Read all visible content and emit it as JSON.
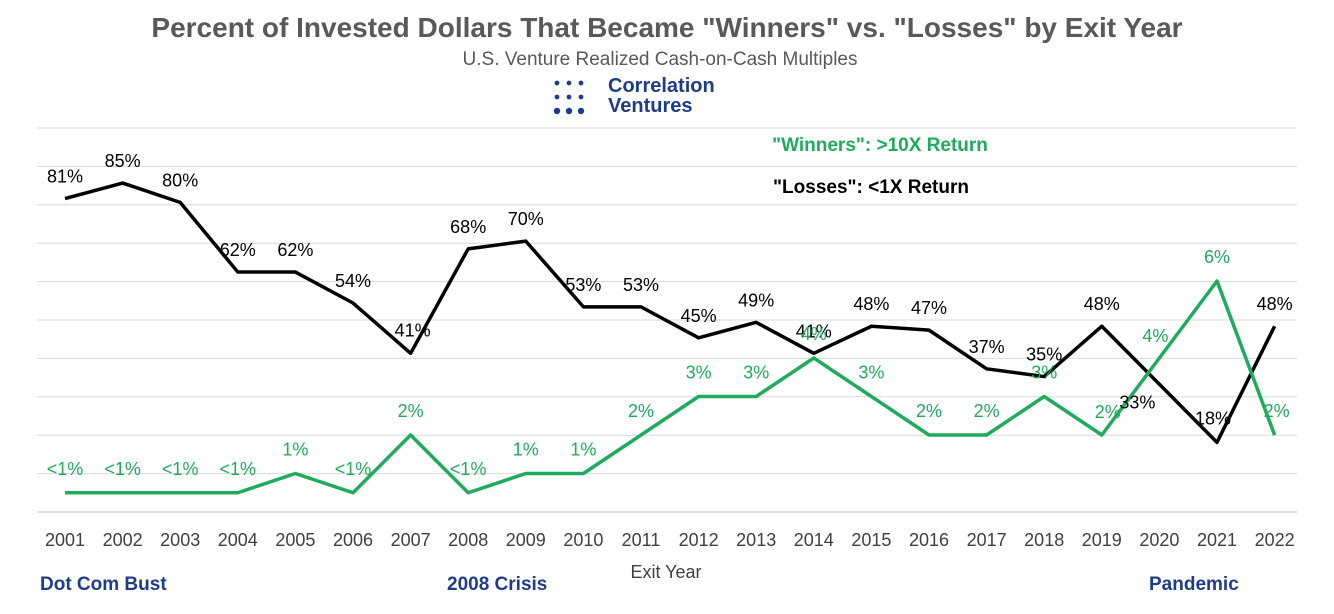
{
  "title": "Percent of Invested Dollars That Became \"Winners\" vs. \"Losses\" by Exit Year",
  "subtitle": "U.S. Venture Realized Cash-on-Cash Multiples",
  "logo": {
    "line1": "Correlation",
    "line2": "Ventures"
  },
  "footer": {
    "left": "Dot Com Bust",
    "middle": "2008 Crisis",
    "right": "Pandemic"
  },
  "colors": {
    "winners": "#1fab5c",
    "losses": "#000000",
    "brand": "#1f3c8c",
    "grid": "#d9d9d9"
  },
  "chart_data": {
    "type": "line",
    "xlabel": "Exit Year",
    "ylabel": "",
    "grid": true,
    "categories": [
      "2001",
      "2002",
      "2003",
      "2004",
      "2005",
      "2006",
      "2007",
      "2008",
      "2009",
      "2010",
      "2011",
      "2012",
      "2013",
      "2014",
      "2015",
      "2016",
      "2017",
      "2018",
      "2019",
      "2020",
      "2021",
      "2022"
    ],
    "series": [
      {
        "name": "\"Losses\": <1X Return",
        "values": [
          81,
          85,
          80,
          62,
          62,
          54,
          41,
          68,
          70,
          53,
          53,
          45,
          49,
          41,
          48,
          47,
          37,
          35,
          48,
          33,
          18,
          48
        ],
        "labels": [
          "81%",
          "85%",
          "80%",
          "62%",
          "62%",
          "54%",
          "41%",
          "68%",
          "70%",
          "53%",
          "53%",
          "45%",
          "49%",
          "41%",
          "48%",
          "47%",
          "37%",
          "35%",
          "48%",
          "33%",
          "18%",
          "48%"
        ]
      },
      {
        "name": "\"Winners\": >10X Return",
        "values": [
          0.5,
          0.5,
          0.5,
          0.5,
          1,
          0.5,
          2,
          0.5,
          1,
          1,
          2,
          3,
          3,
          4,
          3,
          2,
          2,
          3,
          2,
          4,
          6,
          2
        ],
        "labels": [
          "<1%",
          "<1%",
          "<1%",
          "<1%",
          "1%",
          "<1%",
          "2%",
          "<1%",
          "1%",
          "1%",
          "2%",
          "3%",
          "3%",
          "4%",
          "3%",
          "2%",
          "2%",
          "3%",
          "2%",
          "4%",
          "6%",
          "2%"
        ]
      }
    ]
  }
}
